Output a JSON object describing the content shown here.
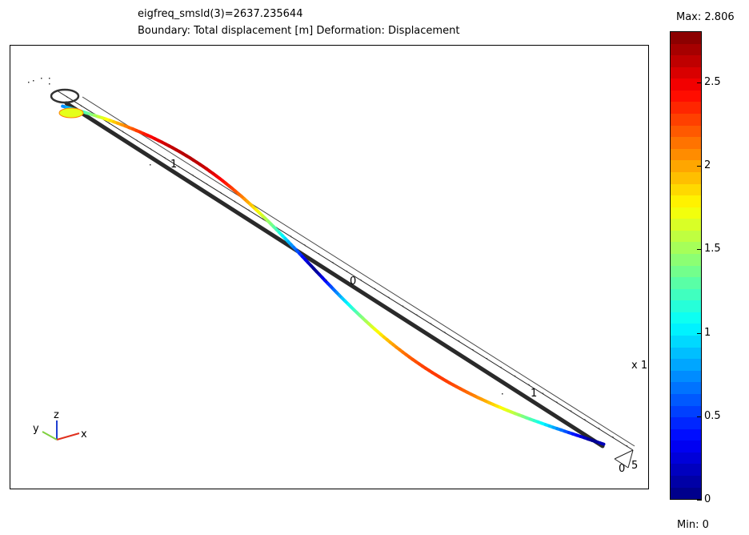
{
  "plot": {
    "title_line1": "eigfreq_smsld(3)=2637.235644",
    "title_line2": "Boundary: Total displacement [m]   Deformation: Displacement"
  },
  "colorbar": {
    "max_label": "Max: 2.806",
    "min_label": "Min: 0",
    "colormap": "jet",
    "ticks": [
      "0",
      "0.5",
      "1",
      "1.5",
      "2",
      "2.5"
    ]
  },
  "axes_labels": {
    "scale_marker": "x 1",
    "end_label_a": "0",
    "end_label_b": "5",
    "mid_label": "0",
    "side_label_1": "1",
    "side_label_2": "1"
  },
  "triad": {
    "x": "x",
    "y": "y",
    "z": "z",
    "x_color": "#e0301e",
    "y_color": "#7fd03f",
    "z_color": "#1f3fd0"
  },
  "chart_data": {
    "type": "surface",
    "title": "eigfreq_smsld(3)=2637.235644",
    "subtitle": "Boundary: Total displacement [m]   Deformation: Displacement",
    "colorbar_range": [
      0,
      2.806
    ],
    "colorbar_ticks": [
      0,
      0.5,
      1,
      1.5,
      2,
      2.5
    ],
    "eigenfrequency": 2637.235644
  }
}
